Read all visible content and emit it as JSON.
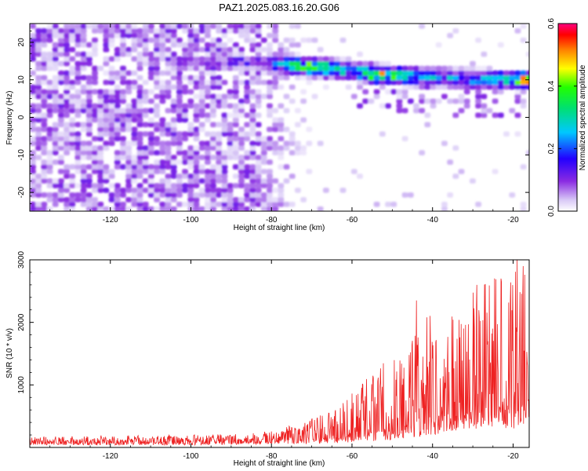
{
  "figure": {
    "title": "PAZ1.2025.083.16.20.G06"
  },
  "chart_data": [
    {
      "type": "heatmap",
      "xlabel": "Height of straight line (km)",
      "ylabel": "Frequency (Hz)",
      "xlim": [
        -140,
        -16
      ],
      "ylim": [
        -25,
        25
      ],
      "xticks": [
        -120,
        -100,
        -80,
        -60,
        -40,
        -20
      ],
      "yticks": [
        -20,
        -10,
        0,
        10,
        20
      ],
      "colorbar": {
        "label": "Normalized spectral amplitude",
        "range": [
          0.0,
          0.6
        ],
        "ticks": [
          "0.0",
          "0.2",
          "0.4",
          "0.6"
        ],
        "colormap": "rainbow (lavender → violet → blue → cyan → green → yellow → orange → red → magenta)"
      },
      "features": {
        "background_noise_region_x": [
          -140,
          -75
        ],
        "signal_track": [
          {
            "x": -104,
            "freq": 15,
            "amplitude": 0.1
          },
          {
            "x": -90,
            "freq": 15,
            "amplitude": 0.15
          },
          {
            "x": -80,
            "freq": 14.5,
            "amplitude": 0.25
          },
          {
            "x": -70,
            "freq": 13.5,
            "amplitude": 0.5
          },
          {
            "x": -60,
            "freq": 12.5,
            "amplitude": 0.3
          },
          {
            "x": -54,
            "freq": 11.5,
            "amplitude": 0.55
          },
          {
            "x": -45,
            "freq": 11,
            "amplitude": 0.3
          },
          {
            "x": -35,
            "freq": 10.5,
            "amplitude": 0.25
          },
          {
            "x": -25,
            "freq": 10,
            "amplitude": 0.3
          },
          {
            "x": -18,
            "freq": 10,
            "amplitude": 0.55
          }
        ]
      }
    },
    {
      "type": "line",
      "xlabel": "Height of straight line (km)",
      "ylabel": "SNR (10 * v/v)",
      "xlim": [
        -140,
        -16
      ],
      "ylim": [
        0,
        3000
      ],
      "xticks": [
        -120,
        -100,
        -80,
        -60,
        -40,
        -20
      ],
      "yticks": [
        1000,
        2000,
        3000
      ],
      "series": [
        {
          "color": "#ee2222",
          "envelope": [
            {
              "x": -140,
              "low": 40,
              "high": 170
            },
            {
              "x": -120,
              "low": 40,
              "high": 190
            },
            {
              "x": -100,
              "low": 40,
              "high": 200
            },
            {
              "x": -85,
              "low": 50,
              "high": 230
            },
            {
              "x": -75,
              "low": 60,
              "high": 350
            },
            {
              "x": -65,
              "low": 70,
              "high": 600
            },
            {
              "x": -60,
              "low": 80,
              "high": 900
            },
            {
              "x": -55,
              "low": 100,
              "high": 1200
            },
            {
              "x": -50,
              "low": 120,
              "high": 1500
            },
            {
              "x": -45,
              "low": 150,
              "high": 1900
            },
            {
              "x": -40,
              "low": 200,
              "high": 2200
            },
            {
              "x": -35,
              "low": 250,
              "high": 2100
            },
            {
              "x": -30,
              "low": 300,
              "high": 2500
            },
            {
              "x": -25,
              "low": 300,
              "high": 2700
            },
            {
              "x": -20,
              "low": 300,
              "high": 2900
            },
            {
              "x": -16,
              "low": 400,
              "high": 3000
            }
          ],
          "peaks": [
            {
              "x": -44,
              "y": 2350
            },
            {
              "x": -29,
              "y": 2600
            },
            {
              "x": -23,
              "y": 2700
            },
            {
              "x": -19,
              "y": 3000
            },
            {
              "x": -17.5,
              "y": 2900
            }
          ]
        }
      ]
    }
  ]
}
